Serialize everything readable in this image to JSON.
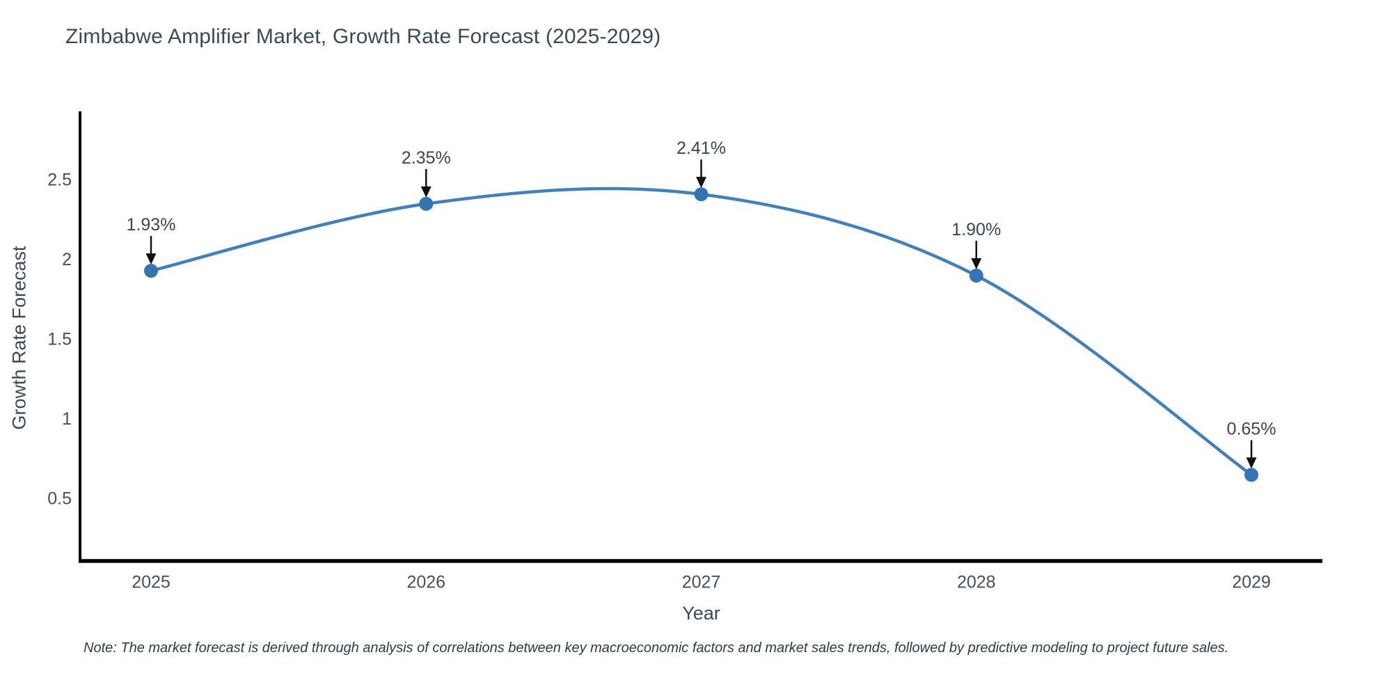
{
  "chart_data": {
    "type": "line",
    "title": "Zimbabwe Amplifier Market, Growth Rate Forecast (2025-2029)",
    "xlabel": "Year",
    "ylabel": "Growth Rate Forecast",
    "categories": [
      "2025",
      "2026",
      "2027",
      "2028",
      "2029"
    ],
    "series": [
      {
        "name": "Growth Rate Forecast",
        "values": [
          1.93,
          2.35,
          2.41,
          1.9,
          0.65
        ],
        "point_labels": [
          "1.93%",
          "2.35%",
          "2.41%",
          "1.90%",
          "0.65%"
        ]
      }
    ],
    "line_shape": "spline",
    "markers": true,
    "annotations_style": "label-with-down-arrow",
    "yticks": [
      0.5,
      1,
      1.5,
      2,
      2.5
    ],
    "ylim": [
      0.11,
      2.93
    ],
    "grid": false,
    "legend": "none",
    "note": "Note: The market forecast is derived through analysis of correlations between key macroeconomic factors and market sales trends, followed by predictive modeling to project future sales."
  },
  "style": {
    "line_color": "#4180bb",
    "marker_color": "#3474b2",
    "axis_color": "#000000",
    "arrow_color": "#111111",
    "title_color": "#3c4859",
    "tick_label_color": "#454f5d",
    "annotation_text_color": "#3a4654",
    "background": "#ffffff"
  }
}
